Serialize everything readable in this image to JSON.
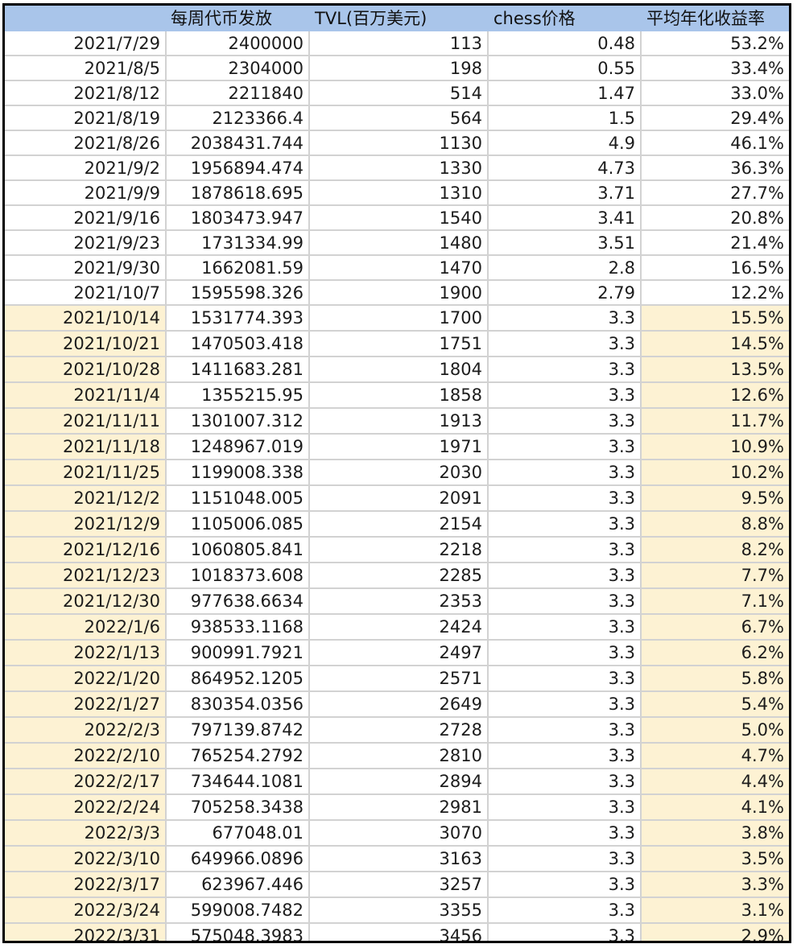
{
  "table": {
    "headers": [
      "",
      "每周代币发放",
      "TVL(百万美元)",
      "chess价格",
      "平均年化收益率"
    ],
    "rows": [
      {
        "date": "2021/7/29",
        "emission": "2400000",
        "tvl": "113",
        "price": "0.48",
        "apy": "53.2%",
        "highlight": false
      },
      {
        "date": "2021/8/5",
        "emission": "2304000",
        "tvl": "198",
        "price": "0.55",
        "apy": "33.4%",
        "highlight": false
      },
      {
        "date": "2021/8/12",
        "emission": "2211840",
        "tvl": "514",
        "price": "1.47",
        "apy": "33.0%",
        "highlight": false
      },
      {
        "date": "2021/8/19",
        "emission": "2123366.4",
        "tvl": "564",
        "price": "1.5",
        "apy": "29.4%",
        "highlight": false
      },
      {
        "date": "2021/8/26",
        "emission": "2038431.744",
        "tvl": "1130",
        "price": "4.9",
        "apy": "46.1%",
        "highlight": false
      },
      {
        "date": "2021/9/2",
        "emission": "1956894.474",
        "tvl": "1330",
        "price": "4.73",
        "apy": "36.3%",
        "highlight": false
      },
      {
        "date": "2021/9/9",
        "emission": "1878618.695",
        "tvl": "1310",
        "price": "3.71",
        "apy": "27.7%",
        "highlight": false
      },
      {
        "date": "2021/9/16",
        "emission": "1803473.947",
        "tvl": "1540",
        "price": "3.41",
        "apy": "20.8%",
        "highlight": false
      },
      {
        "date": "2021/9/23",
        "emission": "1731334.99",
        "tvl": "1480",
        "price": "3.51",
        "apy": "21.4%",
        "highlight": false
      },
      {
        "date": "2021/9/30",
        "emission": "1662081.59",
        "tvl": "1470",
        "price": "2.8",
        "apy": "16.5%",
        "highlight": false
      },
      {
        "date": "2021/10/7",
        "emission": "1595598.326",
        "tvl": "1900",
        "price": "2.79",
        "apy": "12.2%",
        "highlight": false
      },
      {
        "date": "2021/10/14",
        "emission": "1531774.393",
        "tvl": "1700",
        "price": "3.3",
        "apy": "15.5%",
        "highlight": true
      },
      {
        "date": "2021/10/21",
        "emission": "1470503.418",
        "tvl": "1751",
        "price": "3.3",
        "apy": "14.5%",
        "highlight": true
      },
      {
        "date": "2021/10/28",
        "emission": "1411683.281",
        "tvl": "1804",
        "price": "3.3",
        "apy": "13.5%",
        "highlight": true
      },
      {
        "date": "2021/11/4",
        "emission": "1355215.95",
        "tvl": "1858",
        "price": "3.3",
        "apy": "12.6%",
        "highlight": true
      },
      {
        "date": "2021/11/11",
        "emission": "1301007.312",
        "tvl": "1913",
        "price": "3.3",
        "apy": "11.7%",
        "highlight": true
      },
      {
        "date": "2021/11/18",
        "emission": "1248967.019",
        "tvl": "1971",
        "price": "3.3",
        "apy": "10.9%",
        "highlight": true
      },
      {
        "date": "2021/11/25",
        "emission": "1199008.338",
        "tvl": "2030",
        "price": "3.3",
        "apy": "10.2%",
        "highlight": true
      },
      {
        "date": "2021/12/2",
        "emission": "1151048.005",
        "tvl": "2091",
        "price": "3.3",
        "apy": "9.5%",
        "highlight": true
      },
      {
        "date": "2021/12/9",
        "emission": "1105006.085",
        "tvl": "2154",
        "price": "3.3",
        "apy": "8.8%",
        "highlight": true
      },
      {
        "date": "2021/12/16",
        "emission": "1060805.841",
        "tvl": "2218",
        "price": "3.3",
        "apy": "8.2%",
        "highlight": true
      },
      {
        "date": "2021/12/23",
        "emission": "1018373.608",
        "tvl": "2285",
        "price": "3.3",
        "apy": "7.7%",
        "highlight": true
      },
      {
        "date": "2021/12/30",
        "emission": "977638.6634",
        "tvl": "2353",
        "price": "3.3",
        "apy": "7.1%",
        "highlight": true
      },
      {
        "date": "2022/1/6",
        "emission": "938533.1168",
        "tvl": "2424",
        "price": "3.3",
        "apy": "6.7%",
        "highlight": true
      },
      {
        "date": "2022/1/13",
        "emission": "900991.7921",
        "tvl": "2497",
        "price": "3.3",
        "apy": "6.2%",
        "highlight": true
      },
      {
        "date": "2022/1/20",
        "emission": "864952.1205",
        "tvl": "2571",
        "price": "3.3",
        "apy": "5.8%",
        "highlight": true
      },
      {
        "date": "2022/1/27",
        "emission": "830354.0356",
        "tvl": "2649",
        "price": "3.3",
        "apy": "5.4%",
        "highlight": true
      },
      {
        "date": "2022/2/3",
        "emission": "797139.8742",
        "tvl": "2728",
        "price": "3.3",
        "apy": "5.0%",
        "highlight": true
      },
      {
        "date": "2022/2/10",
        "emission": "765254.2792",
        "tvl": "2810",
        "price": "3.3",
        "apy": "4.7%",
        "highlight": true
      },
      {
        "date": "2022/2/17",
        "emission": "734644.1081",
        "tvl": "2894",
        "price": "3.3",
        "apy": "4.4%",
        "highlight": true
      },
      {
        "date": "2022/2/24",
        "emission": "705258.3438",
        "tvl": "2981",
        "price": "3.3",
        "apy": "4.1%",
        "highlight": true
      },
      {
        "date": "2022/3/3",
        "emission": "677048.01",
        "tvl": "3070",
        "price": "3.3",
        "apy": "3.8%",
        "highlight": true
      },
      {
        "date": "2022/3/10",
        "emission": "649966.0896",
        "tvl": "3163",
        "price": "3.3",
        "apy": "3.5%",
        "highlight": true
      },
      {
        "date": "2022/3/17",
        "emission": "623967.446",
        "tvl": "3257",
        "price": "3.3",
        "apy": "3.3%",
        "highlight": true
      },
      {
        "date": "2022/3/24",
        "emission": "599008.7482",
        "tvl": "3355",
        "price": "3.3",
        "apy": "3.1%",
        "highlight": true
      },
      {
        "date": "2022/3/31",
        "emission": "575048.3983",
        "tvl": "3456",
        "price": "3.3",
        "apy": "2.9%",
        "highlight": true
      }
    ]
  },
  "colors": {
    "header_bg": "#a9c5ea",
    "highlight_bg": "#fdf2d3",
    "border": "#000000",
    "gridline": "#d2d2d2"
  }
}
